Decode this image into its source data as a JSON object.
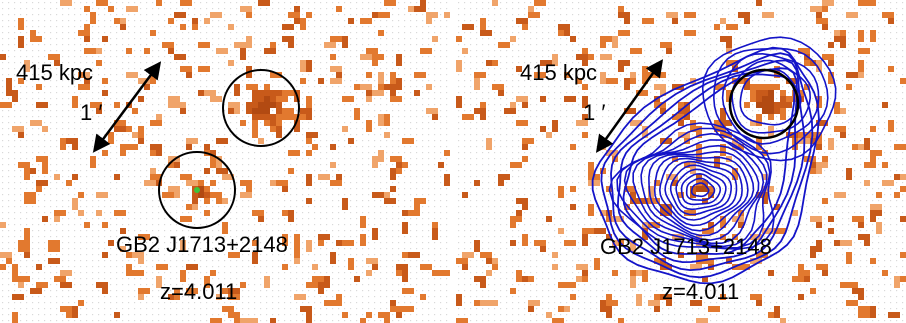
{
  "panels": [
    {
      "id": "left",
      "scale_label": "415 kpc",
      "arc_label": "1 ′",
      "source_name": "GB2 J1713+2148",
      "redshift": "z=4.011",
      "has_contours": false
    },
    {
      "id": "right",
      "scale_label": "415 kpc",
      "arc_label": "1 ′",
      "source_name": "GB2 J1713+2148",
      "redshift": "z=4.011",
      "has_contours": true
    }
  ],
  "colors": {
    "background": "#ffffff",
    "dot_grid": "#d9d9d9",
    "pixel_light": "#f0a46a",
    "pixel_mid": "#e2792f",
    "pixel_dark": "#c85a1a",
    "pixel_core": "#b24a12",
    "circle": "#000000",
    "contour": "#1414c8",
    "highlight": "#3cc43c"
  }
}
